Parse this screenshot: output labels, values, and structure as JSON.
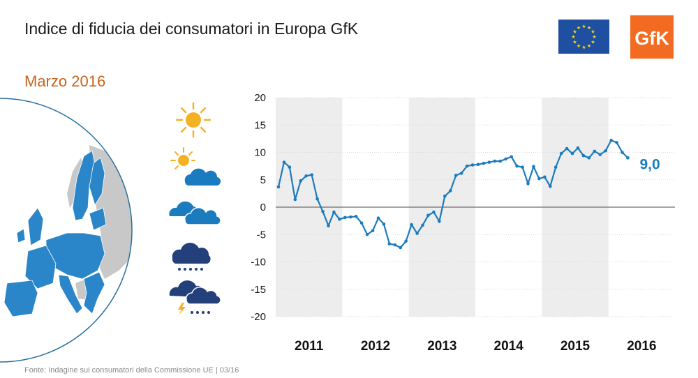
{
  "header": {
    "title": "Indice di fiducia dei consumatori in Europa GfK",
    "subtitle": "Marzo 2016"
  },
  "footer": {
    "source": "Fonte: Indagine sui consumatori della Commissione UE | 03/16"
  },
  "logos": {
    "gfk_text": "GfK",
    "eu_flag_colors": {
      "field": "#1f4fa0",
      "stars": "#ffdd00"
    },
    "gfk_colors": {
      "bg": "#f26b21",
      "fg": "#ffffff"
    }
  },
  "weather_icons": [
    "sun-icon",
    "sun-cloud-icon",
    "cloud-icon",
    "rain-cloud-icon",
    "storm-cloud-icon"
  ],
  "colors": {
    "series": "#1a7bbf",
    "band": "#ededed",
    "zero_line": "#6e6e6e",
    "grid": "#d9d9d9",
    "map_member": "#2a86c8",
    "map_other": "#c8c8c8",
    "highlight_value": "#1a7bbf"
  },
  "chart_data": {
    "type": "line",
    "title": "Indice di fiducia dei consumatori in Europa GfK",
    "ylim": [
      -20,
      20
    ],
    "yticks": [
      20,
      15,
      10,
      5,
      0,
      -5,
      -10,
      -15,
      -20
    ],
    "ytick_labels": [
      "20",
      "15",
      "10",
      "5",
      "0",
      "-5",
      "-10",
      "-15",
      "-20"
    ],
    "year_labels": [
      "2011",
      "2012",
      "2013",
      "2014",
      "2015",
      "2016"
    ],
    "shaded_years": [
      "2011",
      "2013",
      "2015"
    ],
    "last_value_label": "9,0",
    "series": [
      {
        "name": "Indice di fiducia",
        "start": "2011-01",
        "values": [
          3.7,
          8.2,
          7.3,
          1.4,
          4.8,
          5.7,
          5.9,
          1.5,
          -0.8,
          -3.4,
          -0.9,
          -2.2,
          -1.9,
          -1.8,
          -1.7,
          -2.9,
          -5.0,
          -4.3,
          -2.0,
          -3.1,
          -6.7,
          -6.9,
          -7.4,
          -6.2,
          -3.2,
          -4.8,
          -3.3,
          -1.5,
          -0.9,
          -2.6,
          2.0,
          3.0,
          5.8,
          6.2,
          7.5,
          7.7,
          7.8,
          8.0,
          8.2,
          8.4,
          8.4,
          8.8,
          9.2,
          7.5,
          7.3,
          4.3,
          7.4,
          5.2,
          5.5,
          3.8,
          7.3,
          9.8,
          10.7,
          9.8,
          10.8,
          9.4,
          9.0,
          10.2,
          9.6,
          10.3,
          12.2,
          11.8,
          10.0,
          9.0
        ]
      }
    ]
  }
}
